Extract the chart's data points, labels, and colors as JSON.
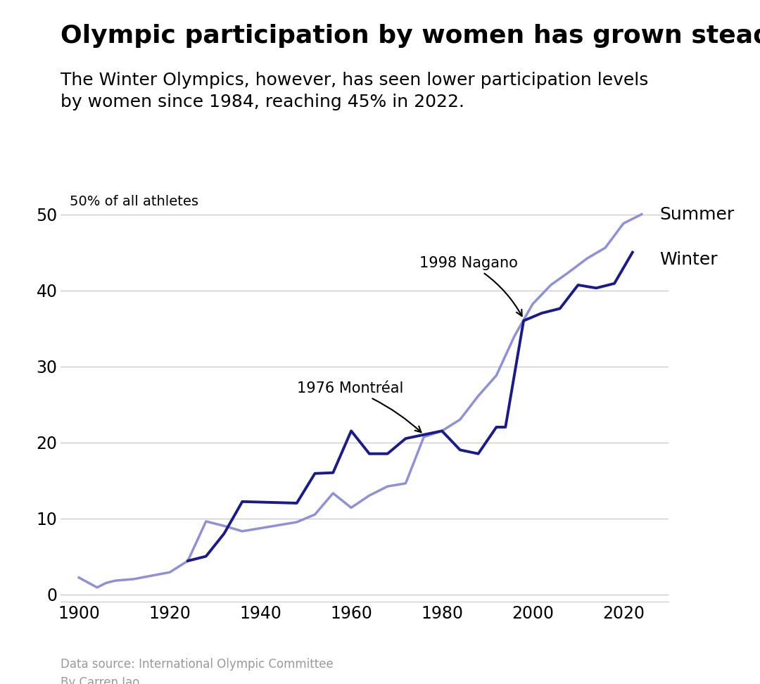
{
  "title": "Olympic participation by women has grown steadily",
  "subtitle": "The Winter Olympics, however, has seen lower participation levels\nby women since 1984, reaching 45% in 2022.",
  "ylabel": "50% of all athletes",
  "source": "Data source: International Olympic Committee\nBy Carren Jao",
  "summer_data": [
    [
      1900,
      2.2
    ],
    [
      1904,
      0.9
    ],
    [
      1906,
      1.5
    ],
    [
      1908,
      1.8
    ],
    [
      1912,
      2.0
    ],
    [
      1920,
      2.9
    ],
    [
      1924,
      4.4
    ],
    [
      1928,
      9.6
    ],
    [
      1932,
      9.0
    ],
    [
      1936,
      8.3
    ],
    [
      1948,
      9.5
    ],
    [
      1952,
      10.5
    ],
    [
      1956,
      13.3
    ],
    [
      1960,
      11.4
    ],
    [
      1964,
      13.0
    ],
    [
      1968,
      14.2
    ],
    [
      1972,
      14.6
    ],
    [
      1976,
      20.7
    ],
    [
      1980,
      21.5
    ],
    [
      1984,
      23.0
    ],
    [
      1988,
      26.1
    ],
    [
      1992,
      28.8
    ],
    [
      1996,
      34.0
    ],
    [
      2000,
      38.2
    ],
    [
      2004,
      40.7
    ],
    [
      2008,
      42.4
    ],
    [
      2012,
      44.2
    ],
    [
      2016,
      45.6
    ],
    [
      2020,
      48.8
    ],
    [
      2024,
      50.0
    ]
  ],
  "winter_data": [
    [
      1924,
      4.4
    ],
    [
      1928,
      5.0
    ],
    [
      1932,
      8.0
    ],
    [
      1936,
      12.2
    ],
    [
      1948,
      12.0
    ],
    [
      1952,
      15.9
    ],
    [
      1956,
      16.0
    ],
    [
      1960,
      21.5
    ],
    [
      1964,
      18.5
    ],
    [
      1968,
      18.5
    ],
    [
      1972,
      20.5
    ],
    [
      1976,
      21.0
    ],
    [
      1980,
      21.5
    ],
    [
      1984,
      19.0
    ],
    [
      1988,
      18.5
    ],
    [
      1992,
      22.0
    ],
    [
      1994,
      22.0
    ],
    [
      1998,
      36.0
    ],
    [
      2002,
      37.0
    ],
    [
      2006,
      37.6
    ],
    [
      2010,
      40.7
    ],
    [
      2014,
      40.3
    ],
    [
      2018,
      40.9
    ],
    [
      2022,
      45.0
    ]
  ],
  "summer_color": "#9090d8",
  "winter_color": "#1a1a8c",
  "annotation_montreal": "1976 Montréal",
  "annotation_nagano": "1998 Nagano",
  "xlim": [
    1896,
    2030
  ],
  "ylim": [
    -1,
    53
  ],
  "xticks": [
    1900,
    1920,
    1940,
    1960,
    1980,
    2000,
    2020
  ],
  "yticks": [
    0,
    10,
    20,
    30,
    40,
    50
  ],
  "background_color": "#ffffff",
  "grid_color": "#c8c8c8",
  "title_fontsize": 26,
  "subtitle_fontsize": 18,
  "tick_fontsize": 17,
  "label_fontsize": 14,
  "annotation_fontsize": 15,
  "source_fontsize": 12,
  "series_label_fontsize": 18
}
